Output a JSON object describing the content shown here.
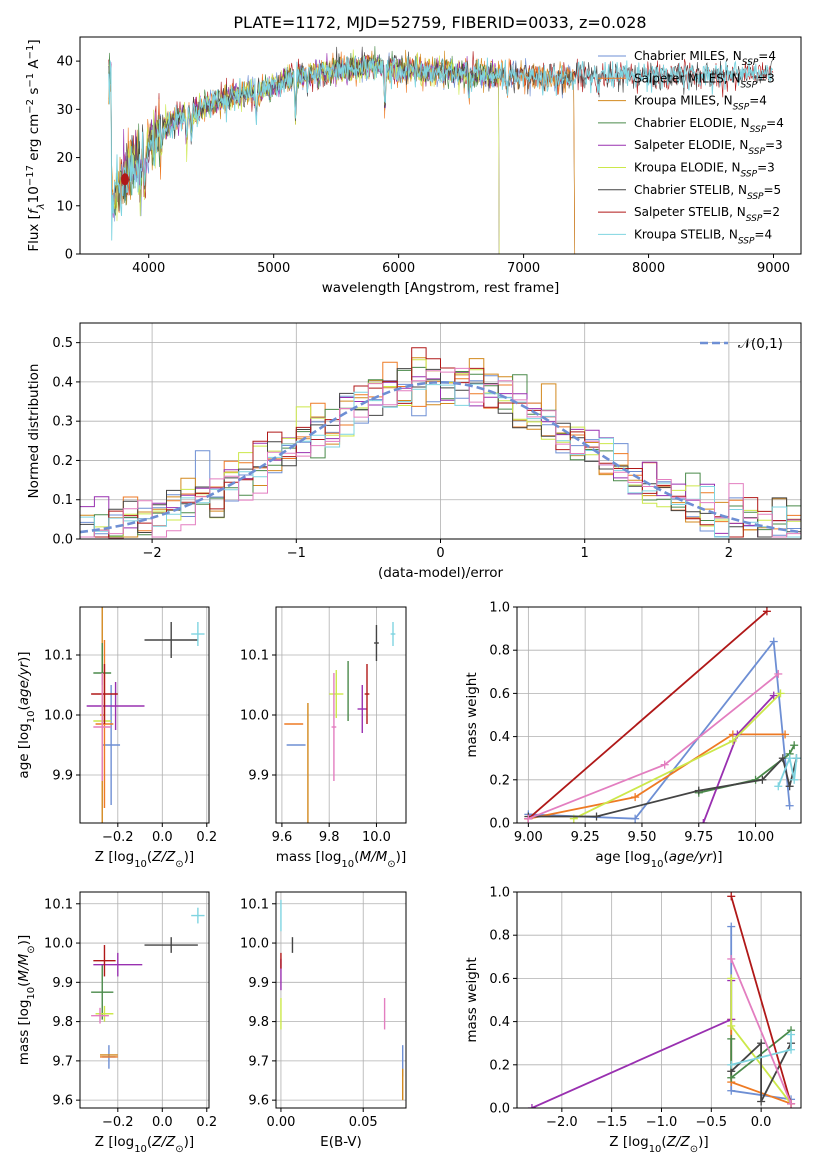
{
  "figure": {
    "title": "PLATE=1172, MJD=52759, FIBERID=0033, z=0.028",
    "colors": {
      "Chabrier MILES": "#6e8fd4",
      "Salpeter MILES": "#ee7a24",
      "Kroupa MILES": "#d3891e",
      "Chabrier ELODIE": "#4a8a4a",
      "Salpeter ELODIE": "#9930b0",
      "Kroupa ELODIE": "#cce84a",
      "Chabrier STELIB": "#444444",
      "Salpeter STELIB": "#b01818",
      "Kroupa STELIB": "#7fd4e0",
      "Pink": "#e37ec0",
      "Gaussian": "#6e8fd4"
    }
  },
  "chart_data": [
    {
      "id": "spectrum",
      "type": "line",
      "title": "PLATE=1172, MJD=52759, FIBERID=0033, z=0.028",
      "xlabel": "wavelength [Angstrom, rest frame]",
      "ylabel": "Flux [f_λ10^-17 erg cm^-2 s^-1 A^-1]",
      "xlim": [
        3450,
        9220
      ],
      "ylim": [
        0,
        45
      ],
      "xticks": [
        4000,
        5000,
        6000,
        7000,
        8000,
        9000
      ],
      "yticks": [
        0,
        10,
        20,
        30,
        40
      ],
      "grid": false,
      "legend_position": "upper-right",
      "series": [
        {
          "name": "Chabrier MILES, N_SSP=4"
        },
        {
          "name": "Salpeter MILES, N_SSP=3"
        },
        {
          "name": "Kroupa MILES, N_SSP=4"
        },
        {
          "name": "Chabrier ELODIE, N_SSP=4"
        },
        {
          "name": "Salpeter ELODIE, N_SSP=3"
        },
        {
          "name": "Kroupa ELODIE, N_SSP=3"
        },
        {
          "name": "Chabrier STELIB, N_SSP=5"
        },
        {
          "name": "Salpeter STELIB, N_SSP=2"
        },
        {
          "name": "Kroupa STELIB, N_SSP=4"
        }
      ],
      "continuum": {
        "x": [
          3700,
          3800,
          3900,
          4000,
          4100,
          4300,
          4500,
          4700,
          4900,
          5200,
          5500,
          5800,
          6100,
          6500,
          7000,
          7200,
          7500,
          8000,
          8500,
          8900
        ],
        "y": [
          11,
          16,
          19,
          23,
          26,
          29,
          31,
          33,
          34,
          37,
          38,
          39,
          38,
          37.5,
          37,
          36.5,
          37,
          37,
          37,
          37.5
        ]
      }
    },
    {
      "id": "residuals",
      "type": "histogram",
      "xlabel": "(data-model)/error",
      "ylabel": "Normed distribution",
      "xlim": [
        -2.5,
        2.5
      ],
      "ylim": [
        0,
        0.55
      ],
      "xticks": [
        -2,
        -1,
        0,
        1,
        2
      ],
      "yticks": [
        0.0,
        0.1,
        0.2,
        0.3,
        0.4,
        0.5
      ],
      "grid": true,
      "legend": "𝒩(0,1)",
      "legend_position": "upper-right",
      "bin_width": 0.1
    },
    {
      "id": "age_vs_Z",
      "type": "errorbar",
      "xlabel": "Z [log10(Z/Z⊙)]",
      "ylabel": "age  [log10(age/yr)]",
      "xlim": [
        -0.37,
        0.21
      ],
      "ylim": [
        9.82,
        10.18
      ],
      "xticks": [
        -0.2,
        0.0,
        0.2
      ],
      "yticks": [
        9.9,
        10.0,
        10.1
      ],
      "grid": true,
      "points": [
        {
          "c": "Chabrier MILES",
          "x": -0.23,
          "y": 9.95,
          "xe": 0.04,
          "ye": 0.1
        },
        {
          "c": "Salpeter MILES",
          "x": -0.26,
          "y": 9.985,
          "xe": 0.04,
          "ye": 0.14
        },
        {
          "c": "Kroupa MILES",
          "x": -0.27,
          "y": 10.0,
          "xe": 0.01,
          "ye": 0.18
        },
        {
          "c": "Chabrier ELODIE",
          "x": -0.27,
          "y": 10.07,
          "xe": 0.04,
          "ye": 0.05
        },
        {
          "c": "Salpeter ELODIE",
          "x": -0.21,
          "y": 10.015,
          "xe": 0.13,
          "ye": 0.04
        },
        {
          "c": "Kroupa ELODIE",
          "x": -0.27,
          "y": 9.99,
          "xe": 0.04,
          "ye": 0.06
        },
        {
          "c": "Chabrier STELIB",
          "x": 0.04,
          "y": 10.125,
          "xe": 0.12,
          "ye": 0.03
        },
        {
          "c": "Salpeter STELIB",
          "x": -0.26,
          "y": 10.035,
          "xe": 0.06,
          "ye": 0.05
        },
        {
          "c": "Kroupa STELIB",
          "x": 0.16,
          "y": 10.135,
          "xe": 0.03,
          "ye": 0.02
        },
        {
          "c": "Pink",
          "x": -0.27,
          "y": 9.98,
          "xe": 0.04,
          "ye": 0.09
        }
      ]
    },
    {
      "id": "age_vs_mass",
      "type": "errorbar",
      "xlabel": "mass [log10(M/M⊙)]",
      "ylabel": "",
      "xlim": [
        9.575,
        10.125
      ],
      "ylim": [
        9.82,
        10.18
      ],
      "xticks": [
        9.6,
        9.8,
        10.0
      ],
      "yticks": [
        9.9,
        10.0,
        10.1
      ],
      "grid": true,
      "points": [
        {
          "c": "Chabrier MILES",
          "x": 9.66,
          "y": 9.95,
          "xe": 0.04,
          "ye": 0.0
        },
        {
          "c": "Salpeter MILES",
          "x": 9.65,
          "y": 9.985,
          "xe": 0.04,
          "ye": 0.0
        },
        {
          "c": "Kroupa MILES",
          "x": 9.71,
          "y": 9.92,
          "xe": 0.0,
          "ye": 0.1
        },
        {
          "c": "Chabrier ELODIE",
          "x": 9.88,
          "y": 10.04,
          "xe": 0.0,
          "ye": 0.05
        },
        {
          "c": "Salpeter ELODIE",
          "x": 9.94,
          "y": 10.01,
          "xe": 0.02,
          "ye": 0.04
        },
        {
          "c": "Kroupa ELODIE",
          "x": 9.83,
          "y": 10.035,
          "xe": 0.03,
          "ye": 0.04
        },
        {
          "c": "Chabrier STELIB",
          "x": 10.0,
          "y": 10.12,
          "xe": 0.01,
          "ye": 0.03
        },
        {
          "c": "Salpeter STELIB",
          "x": 9.96,
          "y": 10.035,
          "xe": 0.01,
          "ye": 0.05
        },
        {
          "c": "Kroupa STELIB",
          "x": 10.07,
          "y": 10.135,
          "xe": 0.01,
          "ye": 0.02
        },
        {
          "c": "Pink",
          "x": 9.82,
          "y": 9.98,
          "xe": 0.01,
          "ye": 0.09
        }
      ]
    },
    {
      "id": "massweight_vs_age",
      "type": "line",
      "xlabel": "age  [log10(age/yr)]",
      "ylabel": "mass weight",
      "xlim": [
        8.95,
        10.2
      ],
      "ylim": [
        0,
        1
      ],
      "xticks": [
        9.0,
        9.25,
        9.5,
        9.75,
        10.0
      ],
      "yticks": [
        0.0,
        0.2,
        0.4,
        0.6,
        0.8,
        1.0
      ],
      "grid": true,
      "series": [
        {
          "c": "Chabrier MILES",
          "x": [
            9.0,
            9.47,
            10.08,
            10.15
          ],
          "y": [
            0.04,
            0.02,
            0.84,
            0.08
          ]
        },
        {
          "c": "Salpeter MILES",
          "x": [
            9.0,
            9.47,
            9.9,
            10.13
          ],
          "y": [
            0.02,
            0.12,
            0.41,
            0.41
          ]
        },
        {
          "c": "Chabrier ELODIE",
          "x": [
            9.75,
            10.0,
            10.15,
            10.17
          ],
          "y": [
            0.14,
            0.2,
            0.32,
            0.36
          ]
        },
        {
          "c": "Salpeter ELODIE",
          "x": [
            9.77,
            9.92,
            10.08
          ],
          "y": [
            0.0,
            0.41,
            0.59
          ]
        },
        {
          "c": "Kroupa ELODIE",
          "x": [
            9.2,
            9.9,
            10.11
          ],
          "y": [
            0.02,
            0.38,
            0.6
          ]
        },
        {
          "c": "Chabrier STELIB",
          "x": [
            9.0,
            9.3,
            9.75,
            10.03,
            10.12,
            10.15,
            10.18
          ],
          "y": [
            0.03,
            0.03,
            0.15,
            0.2,
            0.3,
            0.17,
            0.3
          ]
        },
        {
          "c": "Salpeter STELIB",
          "x": [
            9.0,
            10.05
          ],
          "y": [
            0.02,
            0.98
          ]
        },
        {
          "c": "Kroupa STELIB",
          "x": [
            10.1,
            10.15,
            10.17,
            10.18
          ],
          "y": [
            0.17,
            0.3,
            0.2,
            0.3
          ]
        },
        {
          "c": "Pink",
          "x": [
            9.0,
            9.6,
            10.1
          ],
          "y": [
            0.02,
            0.27,
            0.69
          ]
        }
      ]
    },
    {
      "id": "mass_vs_Z",
      "type": "errorbar",
      "xlabel": "Z [log10(Z/Z⊙)]",
      "ylabel": "mass [log10(M/M⊙)]",
      "xlim": [
        -0.37,
        0.21
      ],
      "ylim": [
        9.58,
        10.13
      ],
      "xticks": [
        -0.2,
        0.0,
        0.2
      ],
      "yticks": [
        9.6,
        9.7,
        9.8,
        9.9,
        10.0,
        10.1
      ],
      "grid": true,
      "points": [
        {
          "c": "Chabrier MILES",
          "x": -0.24,
          "y": 9.71,
          "xe": 0.03,
          "ye": 0.03
        },
        {
          "c": "Salpeter MILES",
          "x": -0.24,
          "y": 9.71,
          "xe": 0.04,
          "ye": 0.0
        },
        {
          "c": "Kroupa MILES",
          "x": -0.24,
          "y": 9.715,
          "xe": 0.04,
          "ye": 0.0
        },
        {
          "c": "Chabrier ELODIE",
          "x": -0.27,
          "y": 9.875,
          "xe": 0.05,
          "ye": 0.07
        },
        {
          "c": "Salpeter ELODIE",
          "x": -0.2,
          "y": 9.945,
          "xe": 0.11,
          "ye": 0.03
        },
        {
          "c": "Kroupa ELODIE",
          "x": -0.26,
          "y": 9.82,
          "xe": 0.04,
          "ye": 0.02
        },
        {
          "c": "Chabrier STELIB",
          "x": 0.04,
          "y": 9.995,
          "xe": 0.12,
          "ye": 0.02
        },
        {
          "c": "Salpeter STELIB",
          "x": -0.26,
          "y": 9.955,
          "xe": 0.05,
          "ye": 0.04
        },
        {
          "c": "Kroupa STELIB",
          "x": 0.16,
          "y": 10.07,
          "xe": 0.03,
          "ye": 0.02
        },
        {
          "c": "Pink",
          "x": -0.28,
          "y": 9.815,
          "xe": 0.04,
          "ye": 0.02
        }
      ]
    },
    {
      "id": "mass_vs_EBV",
      "type": "errorbar",
      "xlabel": "E(B-V)",
      "ylabel": "",
      "xlim": [
        -0.003,
        0.076
      ],
      "ylim": [
        9.58,
        10.13
      ],
      "xticks": [
        0.0,
        0.05
      ],
      "yticks": [
        9.6,
        9.7,
        9.8,
        9.9,
        10.0,
        10.1
      ],
      "grid": true,
      "points": [
        {
          "c": "Chabrier MILES",
          "x": 0.074,
          "y": 9.7,
          "xe": 0.0,
          "ye": 0.04
        },
        {
          "c": "Kroupa MILES",
          "x": 0.074,
          "y": 9.64,
          "xe": 0.0,
          "ye": 0.04
        },
        {
          "c": "Salpeter ELODIE",
          "x": 0.0,
          "y": 9.92,
          "xe": 0.0,
          "ye": 0.04
        },
        {
          "c": "Kroupa ELODIE",
          "x": 0.0,
          "y": 9.82,
          "xe": 0.0,
          "ye": 0.04
        },
        {
          "c": "Chabrier STELIB",
          "x": 0.007,
          "y": 9.995,
          "xe": 0.0,
          "ye": 0.02
        },
        {
          "c": "Salpeter STELIB",
          "x": 0.0,
          "y": 9.955,
          "xe": 0.0,
          "ye": 0.02
        },
        {
          "c": "Kroupa STELIB",
          "x": 0.0,
          "y": 10.07,
          "xe": 0.0,
          "ye": 0.04
        },
        {
          "c": "Pink",
          "x": 0.063,
          "y": 9.82,
          "xe": 0.0,
          "ye": 0.04
        }
      ]
    },
    {
      "id": "massweight_vs_Z",
      "type": "line",
      "xlabel": "Z [log10(Z/Z⊙)]",
      "ylabel": "mass weight",
      "xlim": [
        -2.45,
        0.4
      ],
      "ylim": [
        0,
        1
      ],
      "xticks": [
        -2.0,
        -1.5,
        -1.0,
        -0.5,
        0.0
      ],
      "yticks": [
        0.0,
        0.2,
        0.4,
        0.6,
        0.8,
        1.0
      ],
      "grid": true,
      "series": [
        {
          "c": "Chabrier MILES",
          "x": [
            -0.3,
            -0.3,
            0.3
          ],
          "y": [
            0.84,
            0.08,
            0.04
          ]
        },
        {
          "c": "Salpeter MILES",
          "x": [
            -0.3,
            -0.3,
            0.3
          ],
          "y": [
            0.41,
            0.12,
            0.02
          ]
        },
        {
          "c": "Chabrier ELODIE",
          "x": [
            -0.3,
            -0.3,
            0.3
          ],
          "y": [
            0.32,
            0.14,
            0.36
          ]
        },
        {
          "c": "Salpeter ELODIE",
          "x": [
            -2.3,
            -0.3,
            -0.3
          ],
          "y": [
            0.0,
            0.41,
            0.59
          ]
        },
        {
          "c": "Kroupa ELODIE",
          "x": [
            -0.3,
            -0.3,
            0.3
          ],
          "y": [
            0.6,
            0.38,
            0.02
          ]
        },
        {
          "c": "Chabrier STELIB",
          "x": [
            -0.3,
            0.0,
            0.0,
            0.3
          ],
          "y": [
            0.17,
            0.3,
            0.03,
            0.3
          ]
        },
        {
          "c": "Salpeter STELIB",
          "x": [
            -0.3,
            0.3
          ],
          "y": [
            0.98,
            0.02
          ]
        },
        {
          "c": "Kroupa STELIB",
          "x": [
            -0.3,
            0.3,
            0.3
          ],
          "y": [
            0.2,
            0.27,
            0.34
          ]
        },
        {
          "c": "Pink",
          "x": [
            -0.3,
            0.3
          ],
          "y": [
            0.69,
            0.02
          ]
        }
      ]
    }
  ]
}
